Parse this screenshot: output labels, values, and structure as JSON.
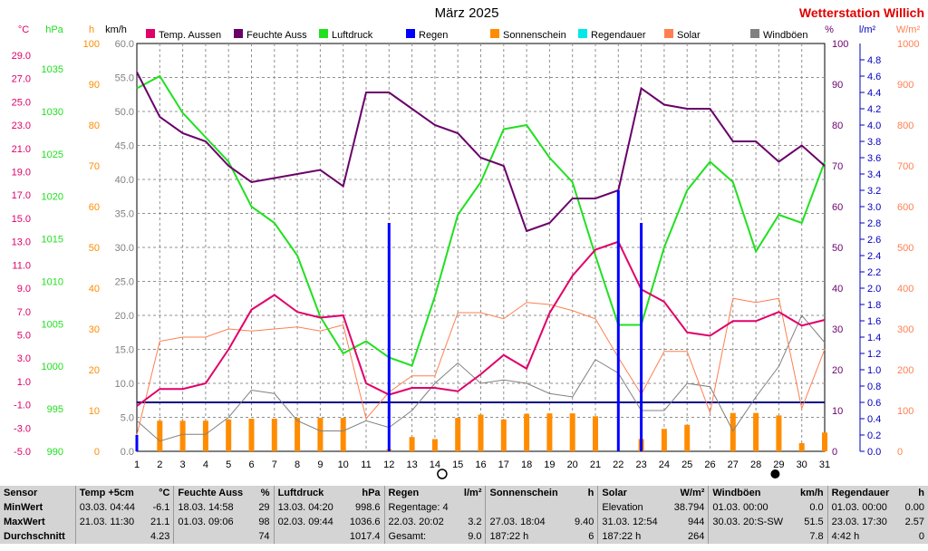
{
  "header": {
    "title": "März 2025",
    "station": "Wetterstation Willich"
  },
  "axes": {
    "temp_unit": "°C",
    "pressure_unit": "hPa",
    "sun_unit": "h",
    "wind_unit": "km/h",
    "humidity_unit": "%",
    "rain_unit": "l/m²",
    "solar_unit": "W/m²",
    "temp_ticks": [
      "29.0",
      "27.0",
      "25.0",
      "23.0",
      "21.0",
      "19.0",
      "17.0",
      "15.0",
      "13.0",
      "11.0",
      "9.0",
      "7.0",
      "5.0",
      "3.0",
      "1.0",
      "-1.0",
      "-3.0",
      "-5.0"
    ],
    "pressure_ticks": [
      "1035",
      "1030",
      "1025",
      "1020",
      "1015",
      "1010",
      "1005",
      "1000",
      "995",
      "990"
    ],
    "sun_ticks": [
      "100",
      "90",
      "80",
      "70",
      "60",
      "50",
      "40",
      "30",
      "20",
      "10",
      "0"
    ],
    "wind_ticks": [
      "60.0",
      "55.0",
      "50.0",
      "45.0",
      "40.0",
      "35.0",
      "30.0",
      "25.0",
      "20.0",
      "15.0",
      "10.0",
      "5.0",
      "0.0"
    ],
    "humidity_ticks": [
      "100",
      "90",
      "80",
      "70",
      "60",
      "50",
      "40",
      "30",
      "20",
      "10",
      "0"
    ],
    "rain_ticks": [
      "4.8",
      "4.6",
      "4.4",
      "4.2",
      "4.0",
      "3.8",
      "3.6",
      "3.4",
      "3.2",
      "3.0",
      "2.8",
      "2.6",
      "2.4",
      "2.2",
      "2.0",
      "1.8",
      "1.6",
      "1.4",
      "1.2",
      "1.0",
      "0.8",
      "0.6",
      "0.4",
      "0.2",
      "0.0"
    ],
    "solar_ticks": [
      "1000",
      "900",
      "800",
      "700",
      "600",
      "500",
      "400",
      "300",
      "200",
      "100",
      "0"
    ],
    "day_ticks": [
      "1",
      "2",
      "3",
      "4",
      "5",
      "6",
      "7",
      "8",
      "9",
      "10",
      "11",
      "12",
      "13",
      "14",
      "15",
      "16",
      "17",
      "18",
      "19",
      "20",
      "21",
      "22",
      "23",
      "24",
      "25",
      "26",
      "27",
      "28",
      "29",
      "30",
      "31"
    ]
  },
  "legend": [
    {
      "label": "Temp. Aussen",
      "color": "#e0006a"
    },
    {
      "label": "Feuchte Auss",
      "color": "#6a006a"
    },
    {
      "label": "Luftdruck",
      "color": "#20e020"
    },
    {
      "label": "Regen",
      "color": "#0000ff"
    },
    {
      "label": "Sonnenschein",
      "color": "#ff8c00"
    },
    {
      "label": "Regendauer",
      "color": "#00e8e8"
    },
    {
      "label": "Solar",
      "color": "#ff7f50"
    },
    {
      "label": "Windböen",
      "color": "#808080"
    }
  ],
  "moon": {
    "full_day": 14,
    "new_day": 29
  },
  "chart_data": {
    "type": "line",
    "x": [
      1,
      2,
      3,
      4,
      5,
      6,
      7,
      8,
      9,
      10,
      11,
      12,
      13,
      14,
      15,
      16,
      17,
      18,
      19,
      20,
      21,
      22,
      23,
      24,
      25,
      26,
      27,
      28,
      29,
      30,
      31
    ],
    "xlim": [
      1,
      31
    ],
    "series": [
      {
        "name": "Temp. Aussen",
        "unit": "°C",
        "color": "#e0006a",
        "ylim": [
          -5,
          31
        ],
        "values": [
          -1.0,
          0.5,
          0.5,
          1.0,
          4.0,
          7.5,
          8.8,
          7.3,
          6.8,
          7.0,
          1.0,
          0.0,
          0.6,
          0.6,
          0.3,
          1.8,
          3.5,
          2.3,
          7.2,
          10.5,
          12.8,
          13.5,
          9.3,
          8.2,
          5.5,
          5.2,
          6.5,
          6.5,
          7.3,
          6.1,
          6.6
        ]
      },
      {
        "name": "Feuchte Auss",
        "unit": "%",
        "color": "#6a006a",
        "ylim": [
          0,
          100
        ],
        "values": [
          93,
          82,
          78,
          76,
          70,
          66,
          67,
          68,
          69,
          65,
          88,
          88,
          84,
          80,
          78,
          72,
          70,
          54,
          56,
          62,
          62,
          64,
          89,
          85,
          84,
          84,
          76,
          76,
          71,
          75,
          70
        ]
      },
      {
        "name": "Luftdruck",
        "unit": "hPa",
        "color": "#20e020",
        "ylim": [
          990,
          1040
        ],
        "values": [
          1034.5,
          1036.0,
          1031.5,
          1028.5,
          1025.5,
          1020.0,
          1018.0,
          1014.0,
          1006.5,
          1002.0,
          1003.5,
          1001.5,
          1000.5,
          1009.0,
          1019.0,
          1023.0,
          1029.5,
          1030.0,
          1026.0,
          1023.0,
          1014.0,
          1005.5,
          1005.5,
          1015.0,
          1022.0,
          1025.5,
          1023.0,
          1014.5,
          1019.0,
          1018.0,
          1025.5
        ]
      },
      {
        "name": "Regen",
        "unit": "l/m²",
        "color": "#0000ff",
        "ylim": [
          0,
          5.0
        ],
        "values": [
          0.2,
          0,
          0,
          0,
          0,
          0,
          0,
          0,
          0,
          0,
          0,
          2.8,
          0,
          0,
          0,
          0,
          0,
          0,
          0,
          0,
          0,
          3.2,
          2.8,
          0,
          0,
          0,
          0,
          0,
          0,
          0,
          0
        ]
      },
      {
        "name": "Sonnenschein",
        "unit": "h",
        "color": "#ff8c00",
        "ylim": [
          0,
          100
        ],
        "values": [
          0,
          7.5,
          7.5,
          7.5,
          7.8,
          8.0,
          8.0,
          8.2,
          8.2,
          8.2,
          0,
          0.5,
          3.5,
          3.0,
          8.2,
          9.0,
          7.8,
          9.2,
          9.3,
          9.3,
          8.6,
          0,
          3.0,
          5.5,
          6.5,
          0,
          9.4,
          9.4,
          8.8,
          2.0,
          4.6
        ]
      },
      {
        "name": "Solar",
        "unit": "W/m²",
        "color": "#ff7f50",
        "ylim": [
          0,
          1000
        ],
        "values": [
          40,
          270,
          280,
          280,
          300,
          295,
          300,
          305,
          295,
          310,
          80,
          145,
          185,
          185,
          340,
          340,
          325,
          365,
          360,
          345,
          325,
          230,
          140,
          245,
          245,
          95,
          375,
          365,
          375,
          105,
          250
        ]
      },
      {
        "name": "Windböen",
        "unit": "km/h",
        "color": "#808080",
        "ylim": [
          0,
          60
        ],
        "values": [
          4.5,
          1.5,
          2.5,
          2.5,
          5.0,
          9.0,
          8.5,
          4.5,
          3.0,
          3.0,
          4.5,
          3.5,
          6.0,
          10.0,
          13.0,
          10.0,
          10.5,
          10.0,
          8.5,
          8.0,
          13.5,
          11.5,
          6.0,
          6.0,
          10.0,
          9.5,
          3.0,
          8.0,
          12.5,
          20.0,
          16.0
        ]
      }
    ],
    "threshold_line": {
      "label": "",
      "value": 0.6,
      "unit": "l/m²",
      "color": "#000080"
    }
  },
  "stats": {
    "headers": [
      {
        "name": "Sensor",
        "unit": ""
      },
      {
        "name": "Temp +5cm",
        "unit": "°C"
      },
      {
        "name": "Feuchte Auss",
        "unit": "%"
      },
      {
        "name": "Luftdruck",
        "unit": "hPa"
      },
      {
        "name": "Regen",
        "unit": "l/m²"
      },
      {
        "name": "Sonnenschein",
        "unit": "h"
      },
      {
        "name": "Solar",
        "unit": "W/m²"
      },
      {
        "name": "Windböen",
        "unit": "km/h"
      },
      {
        "name": "Regendauer",
        "unit": "h"
      }
    ],
    "rows": [
      {
        "label": "MinWert",
        "cells": [
          [
            "03.03.  04:44",
            "-6.1"
          ],
          [
            "18.03.  14:58",
            "29"
          ],
          [
            "13.03.  04:20",
            "998.6"
          ],
          [
            "Regentage: 4",
            ""
          ],
          [
            "",
            ""
          ],
          [
            "Elevation",
            "38.794"
          ],
          [
            "01.03.  00:00",
            "0.0"
          ],
          [
            "01.03.  00:00",
            "0.00"
          ]
        ]
      },
      {
        "label": "MaxWert",
        "cells": [
          [
            "21.03.  11:30",
            "21.1"
          ],
          [
            "01.03.  09:06",
            "98"
          ],
          [
            "02.03.  09:44",
            "1036.6"
          ],
          [
            "22.03.  20:02",
            "3.2"
          ],
          [
            "27.03.  18:04",
            "9.40"
          ],
          [
            "31.03.  12:54",
            "944"
          ],
          [
            "30.03.  20:S-SW",
            "51.5"
          ],
          [
            "23.03.  17:30",
            "2.57"
          ]
        ]
      },
      {
        "label": "Durchschnitt",
        "cells": [
          [
            "",
            "4.23"
          ],
          [
            "",
            "74"
          ],
          [
            "",
            "1017.4"
          ],
          [
            "Gesamt:",
            "9.0"
          ],
          [
            "187:22 h",
            "6"
          ],
          [
            "187:22 h",
            "264"
          ],
          [
            "",
            "7.8"
          ],
          [
            "4:42 h",
            "0"
          ]
        ]
      }
    ]
  }
}
